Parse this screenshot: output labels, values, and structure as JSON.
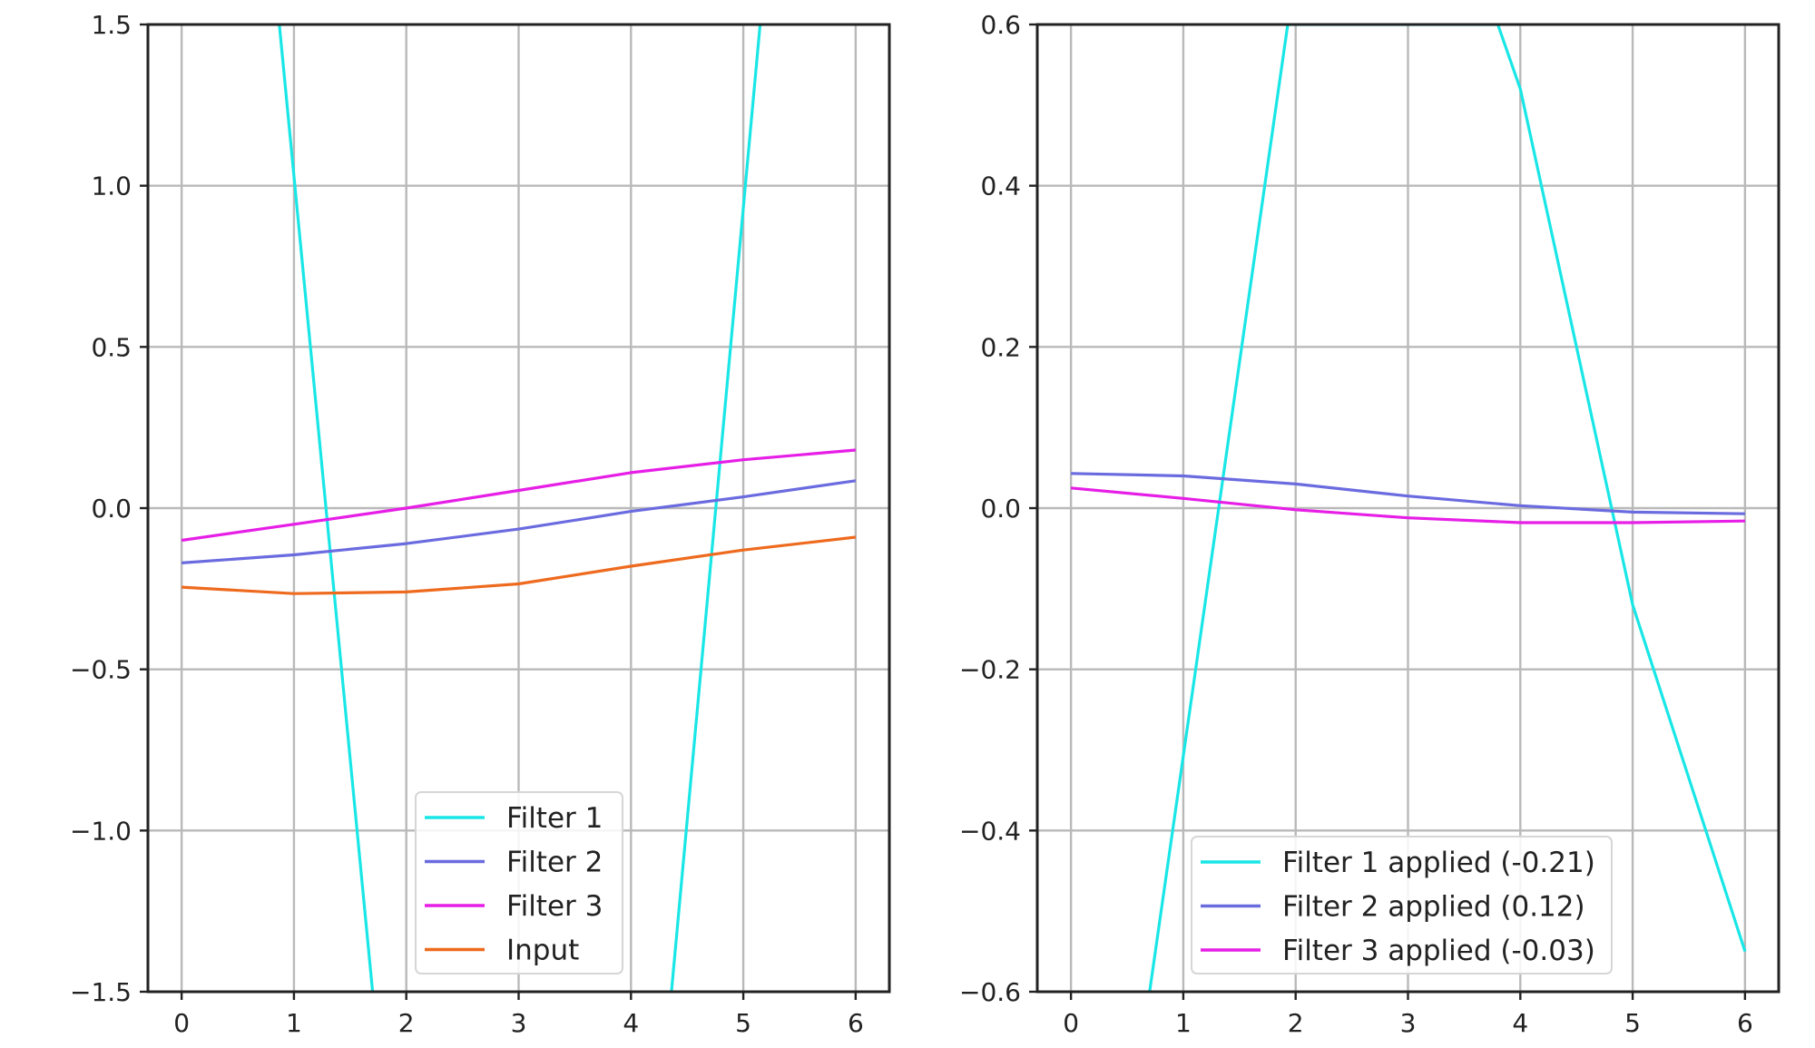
{
  "chart_data": [
    {
      "type": "line",
      "title": "",
      "xlabel": "",
      "ylabel": "",
      "xlim": [
        -0.3,
        6.3
      ],
      "ylim": [
        -1.5,
        1.5
      ],
      "xticks": [
        0,
        1,
        2,
        3,
        4,
        5,
        6
      ],
      "yticks": [
        -1.5,
        -1.0,
        -0.5,
        0.0,
        0.5,
        1.0,
        1.5
      ],
      "ytick_labels": [
        "−1.5",
        "−1.0",
        "−0.5",
        "0.0",
        "0.5",
        "1.0",
        "1.5"
      ],
      "grid": true,
      "legend_position": "lower center",
      "series": [
        {
          "name": "Filter 1",
          "color": "#19e6e6",
          "x": [
            0.87,
            1.7
          ],
          "y": [
            1.5,
            -1.5
          ]
        },
        {
          "name": "Filter 2",
          "color": "#6b6be0",
          "x": [
            0,
            1,
            2,
            3,
            4,
            5,
            6
          ],
          "y": [
            -0.17,
            -0.145,
            -0.11,
            -0.065,
            -0.01,
            0.035,
            0.085
          ]
        },
        {
          "name": "Filter 3",
          "color": "#e61ee6",
          "x": [
            0,
            1,
            2,
            3,
            4,
            5,
            6
          ],
          "y": [
            -0.1,
            -0.05,
            0.0,
            0.055,
            0.11,
            0.15,
            0.18
          ]
        },
        {
          "name": "Input",
          "color": "#ee6a1e",
          "x": [
            0,
            1,
            2,
            3,
            4,
            5,
            6
          ],
          "y": [
            -0.245,
            -0.265,
            -0.26,
            -0.235,
            -0.18,
            -0.13,
            -0.09
          ]
        }
      ],
      "extra_lines": [
        {
          "color": "#19e6e6",
          "x": [
            4.36,
            5.15
          ],
          "y": [
            -1.5,
            1.5
          ]
        }
      ]
    },
    {
      "type": "line",
      "title": "",
      "xlabel": "",
      "ylabel": "",
      "xlim": [
        -0.3,
        6.3
      ],
      "ylim": [
        -0.6,
        0.6
      ],
      "xticks": [
        0,
        1,
        2,
        3,
        4,
        5,
        6
      ],
      "yticks": [
        -0.6,
        -0.4,
        -0.2,
        0.0,
        0.2,
        0.4,
        0.6
      ],
      "ytick_labels": [
        "−0.6",
        "−0.4",
        "−0.2",
        "0.0",
        "0.2",
        "0.4",
        "0.6"
      ],
      "grid": true,
      "legend_position": "lower center",
      "series": [
        {
          "name": "Filter 1 applied (-0.21)",
          "color": "#19e6e6",
          "x": [
            0.7,
            1.93,
            3.8,
            4.0,
            5.0,
            6.0
          ],
          "y": [
            -0.6,
            0.6,
            0.6,
            0.52,
            -0.12,
            -0.55
          ]
        },
        {
          "name": "Filter 2 applied (0.12)",
          "color": "#6b6be0",
          "x": [
            0,
            1,
            2,
            3,
            4,
            5,
            6
          ],
          "y": [
            0.043,
            0.04,
            0.03,
            0.015,
            0.003,
            -0.005,
            -0.007
          ]
        },
        {
          "name": "Filter 3 applied (-0.03)",
          "color": "#e61ee6",
          "x": [
            0,
            1,
            2,
            3,
            4,
            5,
            6
          ],
          "y": [
            0.025,
            0.012,
            -0.002,
            -0.012,
            -0.018,
            -0.018,
            -0.016
          ]
        }
      ],
      "extra_lines": []
    }
  ]
}
